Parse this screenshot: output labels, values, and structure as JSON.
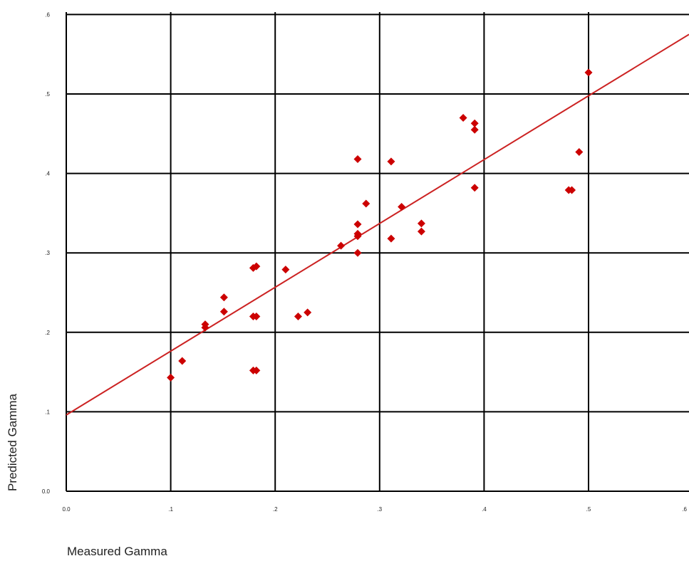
{
  "chart_data": {
    "type": "scatter",
    "xlabel": "Measured Gamma",
    "ylabel": "Predicted Gamma",
    "xlim": [
      0.0,
      0.6
    ],
    "ylim": [
      0.0,
      0.6
    ],
    "x_tick_labels": [
      "0.0",
      ".1",
      ".2",
      ".3",
      ".4",
      ".5",
      ".6"
    ],
    "y_tick_labels": [
      ".6",
      ".5",
      ".4",
      ".3",
      ".2",
      ".1",
      "0.0"
    ],
    "grid": true,
    "marker_color": "#cc0000",
    "line_color": "#cc2222",
    "points": [
      {
        "x": 0.1,
        "y": 0.143
      },
      {
        "x": 0.111,
        "y": 0.164
      },
      {
        "x": 0.133,
        "y": 0.206
      },
      {
        "x": 0.133,
        "y": 0.21
      },
      {
        "x": 0.151,
        "y": 0.226
      },
      {
        "x": 0.151,
        "y": 0.244
      },
      {
        "x": 0.179,
        "y": 0.152
      },
      {
        "x": 0.182,
        "y": 0.152
      },
      {
        "x": 0.179,
        "y": 0.22
      },
      {
        "x": 0.182,
        "y": 0.22
      },
      {
        "x": 0.179,
        "y": 0.281
      },
      {
        "x": 0.182,
        "y": 0.283
      },
      {
        "x": 0.21,
        "y": 0.279
      },
      {
        "x": 0.222,
        "y": 0.22
      },
      {
        "x": 0.231,
        "y": 0.225
      },
      {
        "x": 0.263,
        "y": 0.309
      },
      {
        "x": 0.279,
        "y": 0.3
      },
      {
        "x": 0.279,
        "y": 0.321
      },
      {
        "x": 0.279,
        "y": 0.324
      },
      {
        "x": 0.279,
        "y": 0.336
      },
      {
        "x": 0.279,
        "y": 0.418
      },
      {
        "x": 0.287,
        "y": 0.362
      },
      {
        "x": 0.311,
        "y": 0.318
      },
      {
        "x": 0.311,
        "y": 0.415
      },
      {
        "x": 0.321,
        "y": 0.358
      },
      {
        "x": 0.34,
        "y": 0.327
      },
      {
        "x": 0.34,
        "y": 0.337
      },
      {
        "x": 0.38,
        "y": 0.47
      },
      {
        "x": 0.391,
        "y": 0.455
      },
      {
        "x": 0.391,
        "y": 0.463
      },
      {
        "x": 0.391,
        "y": 0.382
      },
      {
        "x": 0.481,
        "y": 0.379
      },
      {
        "x": 0.484,
        "y": 0.379
      },
      {
        "x": 0.491,
        "y": 0.427
      },
      {
        "x": 0.5,
        "y": 0.527
      }
    ],
    "fit_line": {
      "x": [
        0.0,
        0.6
      ],
      "y": [
        0.096,
        0.575
      ]
    }
  }
}
